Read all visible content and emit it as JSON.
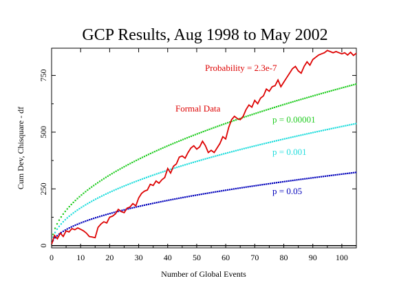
{
  "chart_data": {
    "type": "line",
    "title": "GCP Results, Aug 1998 to May 2002",
    "xlabel": "Number of Global Events",
    "ylabel": "Cum Dev, Chisquare - df",
    "xlim": [
      0,
      105
    ],
    "ylim": [
      -10,
      870
    ],
    "x_ticks": [
      0,
      10,
      20,
      30,
      40,
      50,
      60,
      70,
      80,
      90,
      100
    ],
    "y_ticks": [
      0,
      250,
      500,
      750
    ],
    "grid": false,
    "colors": {
      "formal": "#dd0000",
      "p00001": "#22cc22",
      "p001": "#22dddd",
      "p05": "#0000bb",
      "zero": "#000000"
    },
    "annotations": {
      "probability": "Probability = 2.3e-7",
      "formal": "Formal Data",
      "p00001": "p = 0.00001",
      "p001": "p = 0.001",
      "p05": "p = 0.05"
    },
    "series": [
      {
        "key": "formal",
        "values_x": [
          0,
          1,
          2,
          3,
          4,
          5,
          6,
          7,
          8,
          9,
          10,
          11,
          12,
          13,
          14,
          15,
          16,
          17,
          18,
          19,
          20,
          21,
          22,
          23,
          24,
          25,
          26,
          27,
          28,
          29,
          30,
          31,
          32,
          33,
          34,
          35,
          36,
          37,
          38,
          39,
          40,
          41,
          42,
          43,
          44,
          45,
          46,
          47,
          48,
          49,
          50,
          51,
          52,
          53,
          54,
          55,
          56,
          57,
          58,
          59,
          60,
          61,
          62,
          63,
          64,
          65,
          66,
          67,
          68,
          69,
          70,
          71,
          72,
          73,
          74,
          75,
          76,
          77,
          78,
          79,
          80,
          81,
          82,
          83,
          84,
          85,
          86,
          87,
          88,
          89,
          90,
          91,
          92,
          93,
          94,
          95,
          96,
          97,
          98,
          99,
          100,
          101,
          102,
          103,
          104,
          105
        ],
        "values_y": [
          5,
          45,
          30,
          55,
          40,
          65,
          60,
          75,
          70,
          78,
          72,
          65,
          55,
          40,
          38,
          35,
          80,
          95,
          105,
          100,
          125,
          130,
          140,
          160,
          150,
          145,
          165,
          170,
          185,
          175,
          210,
          230,
          240,
          245,
          270,
          265,
          285,
          275,
          290,
          300,
          340,
          320,
          350,
          360,
          390,
          395,
          385,
          410,
          430,
          440,
          425,
          435,
          460,
          440,
          410,
          420,
          410,
          430,
          450,
          480,
          470,
          520,
          555,
          570,
          560,
          555,
          570,
          600,
          620,
          610,
          640,
          625,
          650,
          660,
          690,
          680,
          700,
          705,
          730,
          700,
          720,
          740,
          760,
          780,
          790,
          770,
          760,
          790,
          810,
          795,
          820,
          830,
          840,
          845,
          850,
          860,
          855,
          850,
          855,
          850,
          845,
          850,
          840,
          852,
          838,
          848
        ]
      },
      {
        "key": "p00001",
        "formula_coef": 69.5,
        "dotted": true
      },
      {
        "key": "p001",
        "formula_coef": 52.5,
        "dotted": true
      },
      {
        "key": "p05",
        "formula_coef": 31.5,
        "dotted": true
      }
    ]
  }
}
